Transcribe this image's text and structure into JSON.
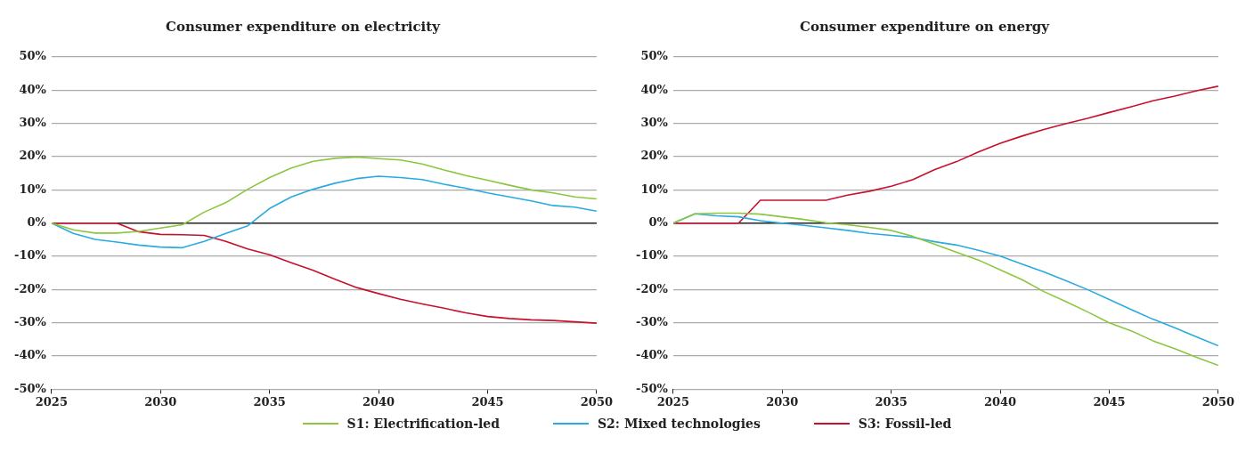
{
  "chart_data": [
    {
      "type": "line",
      "title": "Consumer expenditure on electricity",
      "x": [
        2025,
        2026,
        2027,
        2028,
        2029,
        2030,
        2031,
        2032,
        2033,
        2034,
        2035,
        2036,
        2037,
        2038,
        2039,
        2040,
        2041,
        2042,
        2043,
        2044,
        2045,
        2046,
        2047,
        2048,
        2049,
        2050
      ],
      "series": [
        {
          "name": "S1: Electrification-led",
          "color": "#8cc63f",
          "values": [
            0,
            -2,
            -3,
            -3,
            -2.5,
            -1.5,
            -0.5,
            3.3,
            6.2,
            10.2,
            13.7,
            16.6,
            18.6,
            19.5,
            19.9,
            19.4,
            19,
            17.8,
            16,
            14.3,
            12.9,
            11.4,
            10,
            9.1,
            7.9,
            7.3
          ]
        },
        {
          "name": "S2: Mixed technologies",
          "color": "#29abe2",
          "values": [
            0,
            -3.1,
            -4.9,
            -5.7,
            -6.6,
            -7.2,
            -7.4,
            -5.5,
            -3.1,
            -0.8,
            4.4,
            7.9,
            10.2,
            12,
            13.4,
            14.1,
            13.7,
            13.1,
            11.7,
            10.5,
            9.1,
            7.9,
            6.7,
            5.3,
            4.8,
            3.6
          ]
        },
        {
          "name": "S3: Fossil-led",
          "color": "#c8102e",
          "values": [
            0,
            0,
            0,
            0,
            -2.6,
            -3.4,
            -3.5,
            -3.7,
            -5.5,
            -7.8,
            -9.5,
            -11.9,
            -14.2,
            -16.9,
            -19.4,
            -21.2,
            -22.9,
            -24.3,
            -25.6,
            -27,
            -28.1,
            -28.7,
            -29.1,
            -29.3,
            -29.7,
            -30.1
          ]
        }
      ],
      "xlim": [
        2025,
        2050
      ],
      "xticks": [
        2025,
        2030,
        2035,
        2040,
        2045,
        2050
      ],
      "ylim": [
        -50,
        50
      ],
      "yticks": [
        {
          "value": -50,
          "label": "-50%"
        },
        {
          "value": -40,
          "label": "-40%"
        },
        {
          "value": -30,
          "label": "-30%"
        },
        {
          "value": -20,
          "label": "-20%"
        },
        {
          "value": -10,
          "label": "-10%"
        },
        {
          "value": 0,
          "label": "0%"
        },
        {
          "value": 10,
          "label": "10%"
        },
        {
          "value": 20,
          "label": "20%"
        },
        {
          "value": 30,
          "label": "30%"
        },
        {
          "value": 40,
          "label": "40%"
        },
        {
          "value": 50,
          "label": "50%"
        }
      ],
      "grid": "y",
      "legend": "bottom",
      "marker": "none",
      "line_style": "solid"
    },
    {
      "type": "line",
      "title": "Consumer expenditure on energy",
      "x": [
        2025,
        2026,
        2027,
        2028,
        2029,
        2030,
        2031,
        2032,
        2033,
        2034,
        2035,
        2036,
        2037,
        2038,
        2039,
        2040,
        2041,
        2042,
        2043,
        2044,
        2045,
        2046,
        2047,
        2048,
        2049,
        2050
      ],
      "series": [
        {
          "name": "S1: Electrification-led",
          "color": "#8cc63f",
          "values": [
            0,
            2.8,
            3,
            3,
            2.7,
            1.9,
            1.1,
            0.1,
            -0.5,
            -1.3,
            -2.2,
            -4,
            -6.4,
            -8.8,
            -11.1,
            -14.1,
            -17,
            -20.6,
            -23.6,
            -26.7,
            -30,
            -32.4,
            -35.4,
            -37.8,
            -40.4,
            -42.8
          ]
        },
        {
          "name": "S2: Mixed technologies",
          "color": "#29abe2",
          "values": [
            0,
            2.8,
            2.2,
            1.9,
            0.7,
            0,
            -0.7,
            -1.4,
            -2.2,
            -3.1,
            -3.7,
            -4.3,
            -5.6,
            -6.6,
            -8.2,
            -9.9,
            -12.3,
            -14.7,
            -17.3,
            -20,
            -23,
            -26,
            -28.9,
            -31.5,
            -34.2,
            -36.9
          ]
        },
        {
          "name": "S3: Fossil-led",
          "color": "#c8102e",
          "values": [
            0,
            0,
            0,
            0,
            6.9,
            6.9,
            6.9,
            6.9,
            8.4,
            9.6,
            11.1,
            13.1,
            16.1,
            18.5,
            21.4,
            24,
            26.2,
            28.2,
            29.9,
            31.5,
            33.3,
            35,
            36.8,
            38.2,
            39.8,
            41.2
          ]
        }
      ],
      "xlim": [
        2025,
        2050
      ],
      "xticks": [
        2025,
        2030,
        2035,
        2040,
        2045,
        2050
      ],
      "ylim": [
        -50,
        50
      ],
      "yticks": [
        {
          "value": -50,
          "label": "-50%"
        },
        {
          "value": -40,
          "label": "-40%"
        },
        {
          "value": -30,
          "label": "-30%"
        },
        {
          "value": -20,
          "label": "-20%"
        },
        {
          "value": -10,
          "label": "-10%"
        },
        {
          "value": 0,
          "label": "0%"
        },
        {
          "value": 10,
          "label": "10%"
        },
        {
          "value": 20,
          "label": "20%"
        },
        {
          "value": 30,
          "label": "30%"
        },
        {
          "value": 40,
          "label": "40%"
        },
        {
          "value": 50,
          "label": "50%"
        }
      ],
      "grid": "y",
      "legend": "bottom",
      "marker": "none",
      "line_style": "solid"
    }
  ]
}
